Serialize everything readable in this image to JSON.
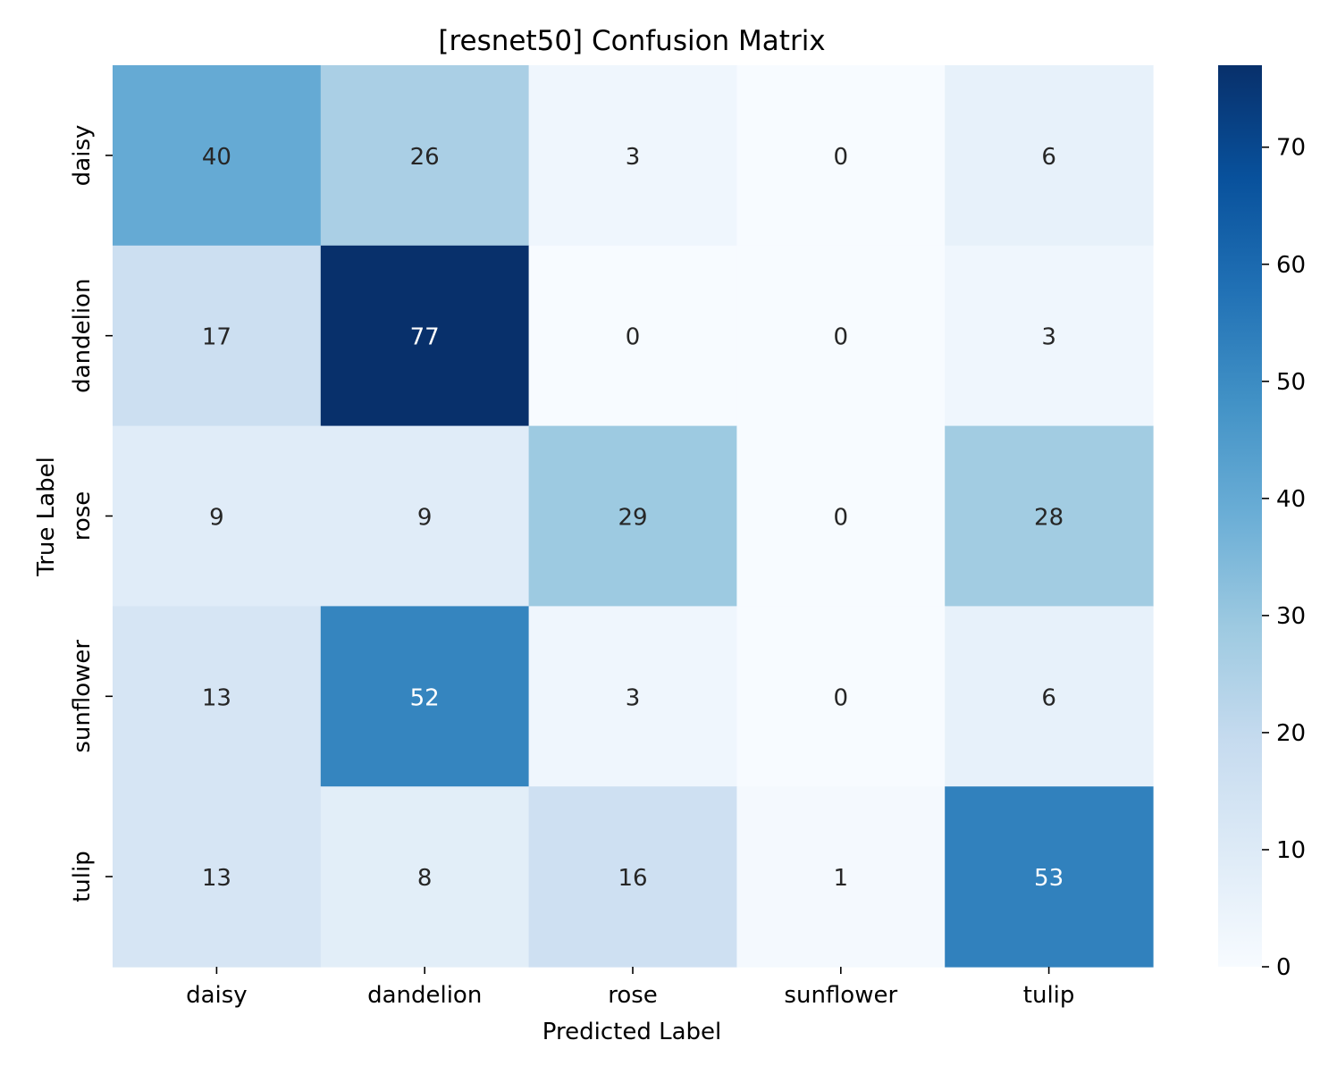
{
  "chart_data": {
    "type": "heatmap",
    "title": "[resnet50] Confusion Matrix",
    "xlabel": "Predicted Label",
    "ylabel": "True Label",
    "x_categories": [
      "daisy",
      "dandelion",
      "rose",
      "sunflower",
      "tulip"
    ],
    "y_categories": [
      "daisy",
      "dandelion",
      "rose",
      "sunflower",
      "tulip"
    ],
    "values": [
      [
        40,
        26,
        3,
        0,
        6
      ],
      [
        17,
        77,
        0,
        0,
        3
      ],
      [
        9,
        9,
        29,
        0,
        28
      ],
      [
        13,
        52,
        3,
        0,
        6
      ],
      [
        13,
        8,
        16,
        1,
        53
      ]
    ],
    "colorscale": "Blues",
    "colorbar": {
      "range": [
        0,
        77
      ],
      "ticks": [
        "0",
        "10",
        "20",
        "30",
        "40",
        "50",
        "60",
        "70"
      ]
    },
    "annot_light_color": "#ffffff",
    "annot_dark_color": "#262626"
  }
}
